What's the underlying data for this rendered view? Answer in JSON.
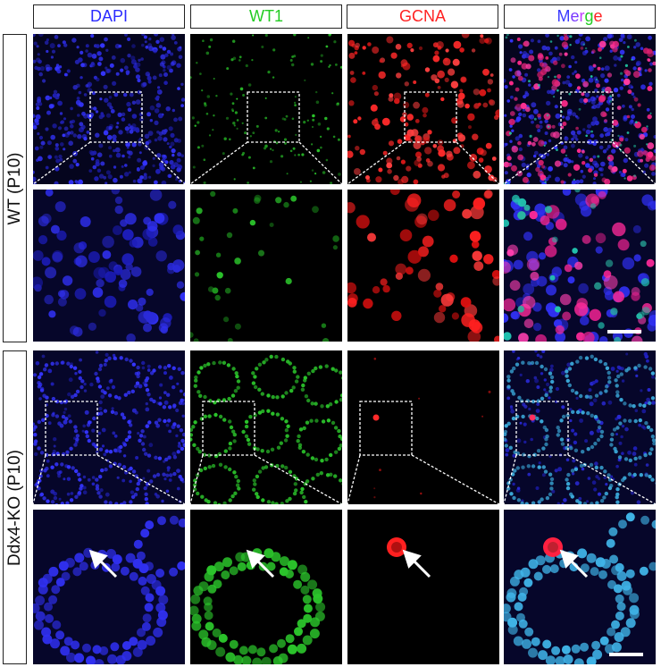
{
  "columns": {
    "dapi": "DAPI",
    "wt1": "WT1",
    "gcna": "GCNA",
    "merge": [
      "M",
      "e",
      "r",
      "g",
      "e"
    ]
  },
  "rows": {
    "wt": "WT  (P10)",
    "ko": "Ddx4-KO  (P10)"
  },
  "colors": {
    "dapi": "#2b2bff",
    "wt1": "#22cc22",
    "gcna": "#ff2222",
    "merge_letters": [
      "#3a3aff",
      "#7a3aff",
      "#c040ff",
      "#22cc22",
      "#ff2222"
    ]
  },
  "icons": [
    "arrow-icon",
    "scale-bar"
  ]
}
